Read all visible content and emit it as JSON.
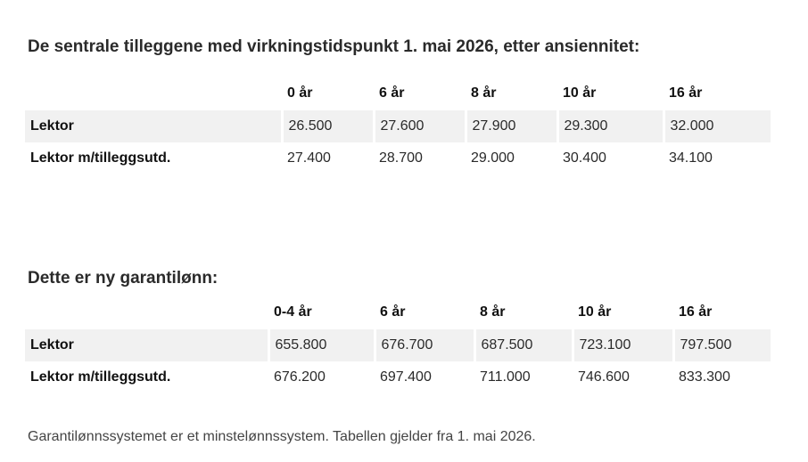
{
  "section1": {
    "title": "De sentrale tilleggene med virkningstidspunkt 1. mai 2026, etter ansiennitet:",
    "headers": [
      "",
      "0 år",
      "6 år",
      "8 år",
      "10 år",
      "16 år"
    ],
    "rows": [
      {
        "label": "Lektor",
        "values": [
          "26.500",
          "27.600",
          "27.900",
          "29.300",
          "32.000"
        ]
      },
      {
        "label": "Lektor m/tilleggsutd.",
        "values": [
          "27.400",
          "28.700",
          "29.000",
          "30.400",
          "34.100"
        ]
      }
    ]
  },
  "section2": {
    "title": "Dette er ny garantilønn:",
    "headers": [
      "",
      "0-4 år",
      "6 år",
      "8 år",
      "10 år",
      "16 år"
    ],
    "rows": [
      {
        "label": "Lektor",
        "values": [
          "655.800",
          "676.700",
          "687.500",
          "723.100",
          "797.500"
        ]
      },
      {
        "label": "Lektor m/tilleggsutd.",
        "values": [
          "676.200",
          "697.400",
          "711.000",
          "746.600",
          "833.300"
        ]
      }
    ]
  },
  "footnote": "Garantilønnssystemet er et minstelønnssystem. Tabellen gjelder fra 1. mai 2026."
}
